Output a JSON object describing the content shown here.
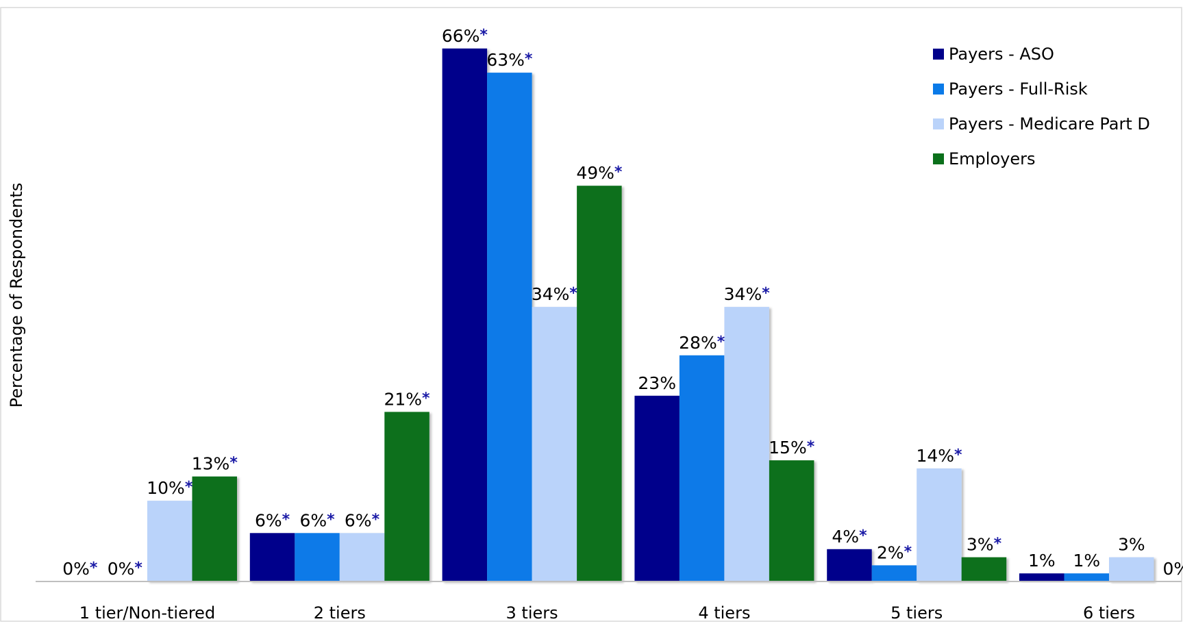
{
  "chart_data": {
    "type": "bar",
    "ylabel": "Percentage of Respondents",
    "xlabel": "",
    "title": "",
    "ylim": [
      0,
      72
    ],
    "grid": false,
    "legend_position": "top-right",
    "significance_marker": "*",
    "categories": [
      "1 tier/Non-tiered",
      "2 tiers",
      "3 tiers",
      "4 tiers",
      "5 tiers",
      "6 tiers"
    ],
    "series": [
      {
        "name": "Payers - ASO",
        "color": "#00008B",
        "values": [
          0,
          6,
          66,
          23,
          4,
          1
        ],
        "labels": [
          "0%",
          "6%",
          "66%",
          "23%",
          "4%",
          "1%"
        ],
        "significant": [
          true,
          true,
          true,
          false,
          true,
          false
        ]
      },
      {
        "name": "Payers - Full-Risk",
        "color": "#0A7AE8",
        "values": [
          0,
          6,
          63,
          28,
          2,
          1
        ],
        "labels": [
          "0%",
          "6%",
          "63%",
          "28%",
          "2%",
          "1%"
        ],
        "significant": [
          true,
          true,
          true,
          true,
          true,
          false
        ]
      },
      {
        "name": "Payers - Medicare Part D",
        "color": "#BAD3FA",
        "values": [
          10,
          6,
          34,
          34,
          14,
          3
        ],
        "labels": [
          "10%",
          "6%",
          "34%",
          "34%",
          "14%",
          "3%"
        ],
        "significant": [
          true,
          true,
          true,
          true,
          true,
          false
        ]
      },
      {
        "name": "Employers",
        "color": "#0B701B",
        "values": [
          13,
          21,
          49,
          15,
          3,
          0
        ],
        "labels": [
          "13%",
          "21%",
          "49%",
          "15%",
          "3%",
          "0%"
        ],
        "significant": [
          true,
          true,
          true,
          true,
          true,
          false
        ]
      }
    ],
    "colors": {
      "marker": "#1A1AA6",
      "text": "#000000",
      "axis": "#BFBFBF",
      "frame": "#D9D9D9"
    }
  }
}
